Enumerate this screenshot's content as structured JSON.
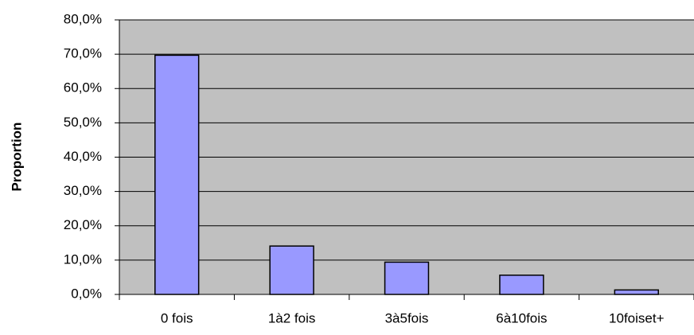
{
  "chart_data": {
    "type": "bar",
    "y_label": "Proportion",
    "categories": [
      "0 fois",
      "1à2 fois",
      "3à5fois",
      "6à10fois",
      "10foiset+"
    ],
    "values": [
      69.7,
      14.1,
      9.4,
      5.6,
      1.3
    ],
    "color": "#9999ff",
    "ylim": [
      0,
      80
    ],
    "yticks": [
      {
        "value": 0,
        "label": "0,0%"
      },
      {
        "value": 10,
        "label": "10,0%"
      },
      {
        "value": 20,
        "label": "20,0%"
      },
      {
        "value": 30,
        "label": "30,0%"
      },
      {
        "value": 40,
        "label": "40,0%"
      },
      {
        "value": 50,
        "label": "50,0%"
      },
      {
        "value": 60,
        "label": "60,0%"
      },
      {
        "value": 70,
        "label": "70,0%"
      },
      {
        "value": 80,
        "label": "80,0%"
      }
    ],
    "grid": true
  }
}
